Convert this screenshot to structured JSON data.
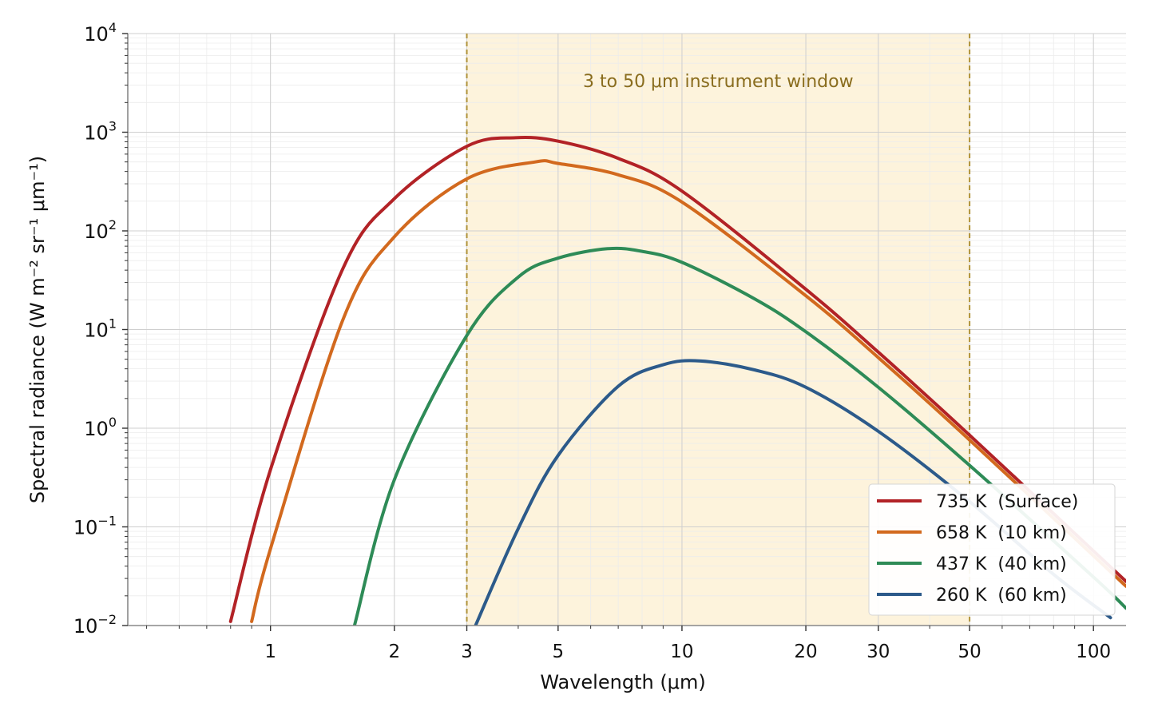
{
  "chart_data": {
    "type": "line",
    "xlabel": "Wavelength (μm)",
    "ylabel": "Spectral radiance (W m⁻² sr⁻¹ μm⁻¹)",
    "x_scale": "log",
    "y_scale": "log",
    "xlim": [
      0.45,
      120
    ],
    "ylim": [
      0.01,
      10000
    ],
    "x_ticks": [
      1,
      2,
      3,
      5,
      10,
      20,
      30,
      50,
      100
    ],
    "x_tick_labels": [
      "1",
      "2",
      "3",
      "5",
      "10",
      "20",
      "30",
      "50",
      "100"
    ],
    "y_ticks": [
      0.01,
      0.1,
      1,
      10,
      100,
      1000,
      10000
    ],
    "y_tick_labels": [
      {
        "base": "10",
        "exp": "−2"
      },
      {
        "base": "10",
        "exp": "−1"
      },
      {
        "base": "10",
        "exp": "0"
      },
      {
        "base": "10",
        "exp": "1"
      },
      {
        "base": "10",
        "exp": "2"
      },
      {
        "base": "10",
        "exp": "3"
      },
      {
        "base": "10",
        "exp": "4"
      }
    ],
    "grid": true,
    "legend_position": "lower-right",
    "band": {
      "x_range": [
        3,
        50
      ],
      "label": "3 to 50 μm instrument window",
      "fill_color": "#fdf3dc",
      "line_color": "#b0933a",
      "label_color": "#8a6d1e"
    },
    "series": [
      {
        "name": "735 K  (Surface)",
        "temperature_K": 735,
        "color": "#b22226",
        "x": [
          0.8,
          1,
          1.5,
          2,
          3,
          3.94,
          5,
          7,
          10,
          20,
          30,
          50,
          100,
          120
        ],
        "y": [
          0.011,
          0.38,
          41.6,
          212,
          720,
          880,
          812,
          543,
          253,
          25.6,
          5.9,
          0.85,
          0.057,
          0.028
        ]
      },
      {
        "name": "658 K  (10 km)",
        "temperature_K": 658,
        "color": "#d2691e",
        "x": [
          0.9,
          1,
          1.5,
          2,
          3,
          4.4,
          5,
          7,
          10,
          20,
          30,
          50,
          100,
          120
        ],
        "y": [
          0.011,
          0.06,
          12.6,
          87,
          337,
          500,
          482,
          370,
          196,
          22.0,
          5.2,
          0.76,
          0.051,
          0.025
        ]
      },
      {
        "name": "437 K  (40 km)",
        "temperature_K": 437,
        "color": "#2e8b57",
        "x": [
          1.6,
          2,
          3,
          4,
          5,
          6.6,
          8,
          10,
          15,
          20,
          30,
          50,
          100,
          120
        ],
        "y": [
          0.01,
          0.3,
          8.7,
          34,
          53,
          66,
          62,
          48,
          20.5,
          9.5,
          2.6,
          0.42,
          0.031,
          0.015
        ]
      },
      {
        "name": "260 K  (60 km)",
        "temperature_K": 260,
        "color": "#2c5a8a",
        "x": [
          3.15,
          4,
          5,
          7,
          9,
          11.1,
          15,
          20,
          30,
          50,
          80,
          110
        ],
        "y": [
          0.01,
          0.096,
          0.53,
          2.66,
          4.4,
          4.8,
          3.9,
          2.6,
          0.93,
          0.18,
          0.033,
          0.012
        ]
      }
    ]
  }
}
